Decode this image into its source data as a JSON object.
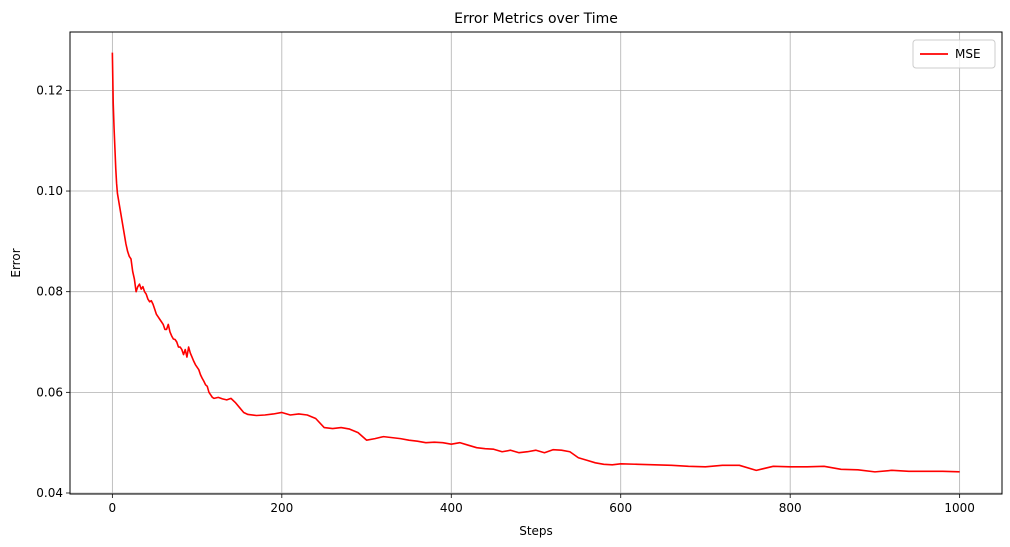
{
  "chart_data": {
    "type": "line",
    "title": "Error Metrics over Time",
    "xlabel": "Steps",
    "ylabel": "Error",
    "xlim": [
      -50,
      1050
    ],
    "ylim": [
      0.0398,
      0.1316
    ],
    "xticks": [
      0,
      200,
      400,
      600,
      800,
      1000
    ],
    "yticks": [
      0.04,
      0.06,
      0.08,
      0.1,
      0.12
    ],
    "xtick_labels": [
      "0",
      "200",
      "400",
      "600",
      "800",
      "1000"
    ],
    "ytick_labels": [
      "0.04",
      "0.06",
      "0.08",
      "0.10",
      "0.12"
    ],
    "grid": true,
    "legend_placement": "top-right",
    "series": [
      {
        "name": "MSE",
        "color": "#ff0000",
        "x": [
          0,
          1,
          2,
          3,
          4,
          5,
          6,
          8,
          10,
          12,
          14,
          16,
          18,
          20,
          22,
          24,
          26,
          28,
          30,
          32,
          34,
          36,
          38,
          40,
          42,
          44,
          46,
          48,
          50,
          52,
          54,
          56,
          58,
          60,
          62,
          64,
          66,
          68,
          70,
          72,
          74,
          76,
          78,
          80,
          82,
          84,
          86,
          88,
          90,
          92,
          94,
          96,
          98,
          100,
          102,
          104,
          106,
          108,
          110,
          112,
          114,
          116,
          118,
          120,
          125,
          130,
          135,
          140,
          145,
          150,
          155,
          160,
          170,
          180,
          190,
          200,
          210,
          220,
          230,
          240,
          250,
          260,
          270,
          280,
          290,
          300,
          310,
          320,
          330,
          340,
          350,
          360,
          370,
          380,
          390,
          400,
          410,
          420,
          430,
          440,
          450,
          460,
          470,
          480,
          490,
          500,
          510,
          520,
          530,
          540,
          550,
          560,
          570,
          580,
          590,
          600,
          620,
          640,
          660,
          680,
          700,
          720,
          740,
          760,
          780,
          800,
          820,
          840,
          860,
          880,
          900,
          920,
          940,
          960,
          980,
          1000
        ],
        "y": [
          0.1275,
          0.1175,
          0.1125,
          0.1085,
          0.1045,
          0.1015,
          0.0995,
          0.0975,
          0.0955,
          0.0935,
          0.0915,
          0.0895,
          0.088,
          0.087,
          0.0865,
          0.084,
          0.0825,
          0.08,
          0.081,
          0.0815,
          0.0805,
          0.081,
          0.08,
          0.0795,
          0.0785,
          0.078,
          0.0782,
          0.0775,
          0.0765,
          0.0755,
          0.075,
          0.0745,
          0.074,
          0.0735,
          0.0725,
          0.0725,
          0.0735,
          0.072,
          0.0712,
          0.0706,
          0.0705,
          0.07,
          0.069,
          0.069,
          0.0685,
          0.0675,
          0.0685,
          0.067,
          0.069,
          0.0678,
          0.067,
          0.0662,
          0.0655,
          0.065,
          0.0645,
          0.0635,
          0.0628,
          0.0622,
          0.0615,
          0.0612,
          0.06,
          0.0595,
          0.059,
          0.0588,
          0.059,
          0.0587,
          0.0585,
          0.0588,
          0.058,
          0.057,
          0.056,
          0.0556,
          0.0554,
          0.0555,
          0.0557,
          0.056,
          0.0555,
          0.0557,
          0.0555,
          0.0548,
          0.053,
          0.0528,
          0.053,
          0.0527,
          0.052,
          0.0505,
          0.0508,
          0.0512,
          0.051,
          0.0508,
          0.0505,
          0.0503,
          0.05,
          0.0501,
          0.05,
          0.0497,
          0.05,
          0.0495,
          0.049,
          0.0488,
          0.0487,
          0.0482,
          0.0485,
          0.048,
          0.0482,
          0.0485,
          0.048,
          0.0486,
          0.0485,
          0.0482,
          0.047,
          0.0465,
          0.046,
          0.0457,
          0.0456,
          0.0458,
          0.0457,
          0.0456,
          0.0455,
          0.0453,
          0.0452,
          0.0455,
          0.0455,
          0.0445,
          0.0453,
          0.0452,
          0.0452,
          0.0453,
          0.0447,
          0.0446,
          0.0442,
          0.0445,
          0.0443,
          0.0443,
          0.0443,
          0.0442
        ]
      }
    ]
  }
}
